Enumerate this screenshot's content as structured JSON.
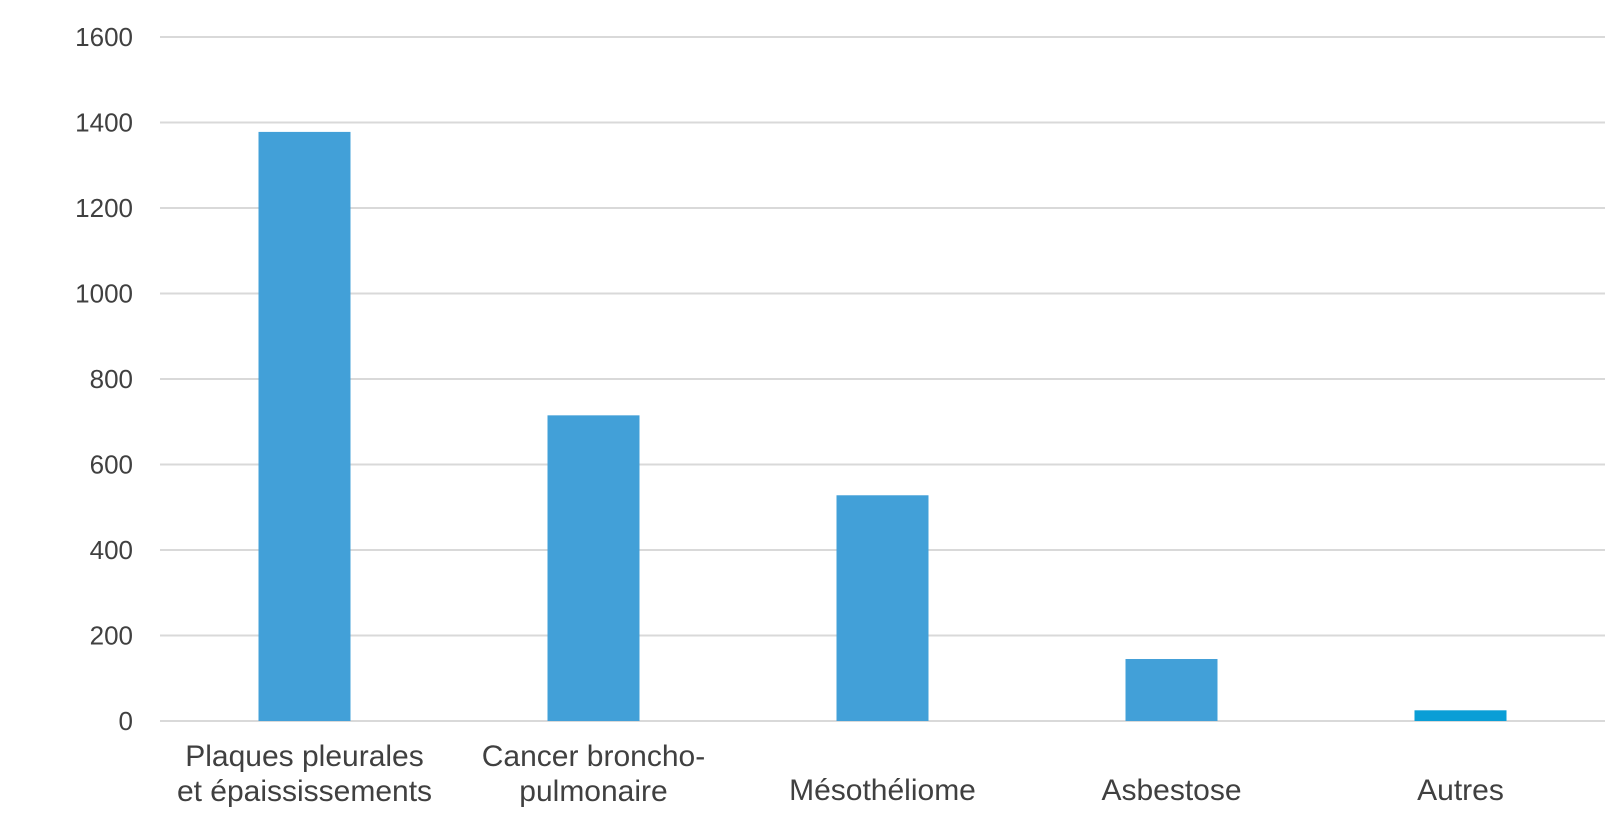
{
  "chart_data": {
    "type": "bar",
    "categories": [
      [
        "Plaques pleurales",
        "et épaississements"
      ],
      [
        "Cancer broncho-",
        "pulmonaire"
      ],
      [
        "Mésothéliome"
      ],
      [
        "Asbestose"
      ],
      [
        "Autres"
      ]
    ],
    "values": [
      1378,
      715,
      528,
      145,
      25
    ],
    "ylim": [
      0,
      1600
    ],
    "yticks": [
      0,
      200,
      400,
      600,
      800,
      1000,
      1200,
      1400,
      1600
    ],
    "grid": true,
    "legend": "none",
    "colors": {
      "bars": [
        "#42a0d8",
        "#42a0d8",
        "#42a0d8",
        "#42a0d8",
        "#0a9ed6"
      ],
      "grid": "#d9d9d9",
      "text": "#404040"
    }
  }
}
